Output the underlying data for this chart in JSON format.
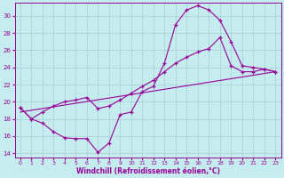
{
  "xlabel": "Windchill (Refroidissement éolien,°C)",
  "bg_color": "#c5ecee",
  "line_color": "#990099",
  "grid_color": "#a8d0d4",
  "xlim": [
    -0.5,
    23.5
  ],
  "ylim": [
    13.5,
    31.5
  ],
  "xticks": [
    0,
    1,
    2,
    3,
    4,
    5,
    6,
    7,
    8,
    9,
    10,
    11,
    12,
    13,
    14,
    15,
    16,
    17,
    18,
    19,
    20,
    21,
    22,
    23
  ],
  "yticks": [
    14,
    16,
    18,
    20,
    22,
    24,
    26,
    28,
    30
  ],
  "curve1_x": [
    0,
    1,
    2,
    3,
    4,
    5,
    6,
    7,
    8,
    9,
    10,
    11,
    12,
    13,
    14,
    15,
    16,
    17,
    18,
    19,
    20,
    21,
    22,
    23
  ],
  "curve1_y": [
    19.3,
    18.0,
    17.5,
    16.5,
    15.8,
    15.7,
    15.7,
    14.1,
    15.2,
    18.5,
    18.8,
    21.2,
    21.8,
    24.5,
    29.0,
    30.7,
    31.2,
    30.7,
    29.5,
    27.0,
    24.2,
    24.0,
    23.8,
    23.5
  ],
  "curve2_x": [
    0,
    1,
    2,
    3,
    4,
    5,
    6,
    7,
    8,
    9,
    10,
    11,
    12,
    13,
    14,
    15,
    16,
    17,
    18,
    19,
    20,
    21,
    22,
    23
  ],
  "curve2_y": [
    19.3,
    18.0,
    18.8,
    19.5,
    20.0,
    20.2,
    20.5,
    19.2,
    19.5,
    20.2,
    21.0,
    21.8,
    22.5,
    23.5,
    24.5,
    25.2,
    25.8,
    26.2,
    27.5,
    24.2,
    23.5,
    23.5,
    23.8,
    23.5
  ],
  "curve3_x": [
    0,
    23
  ],
  "curve3_y": [
    18.8,
    23.5
  ]
}
